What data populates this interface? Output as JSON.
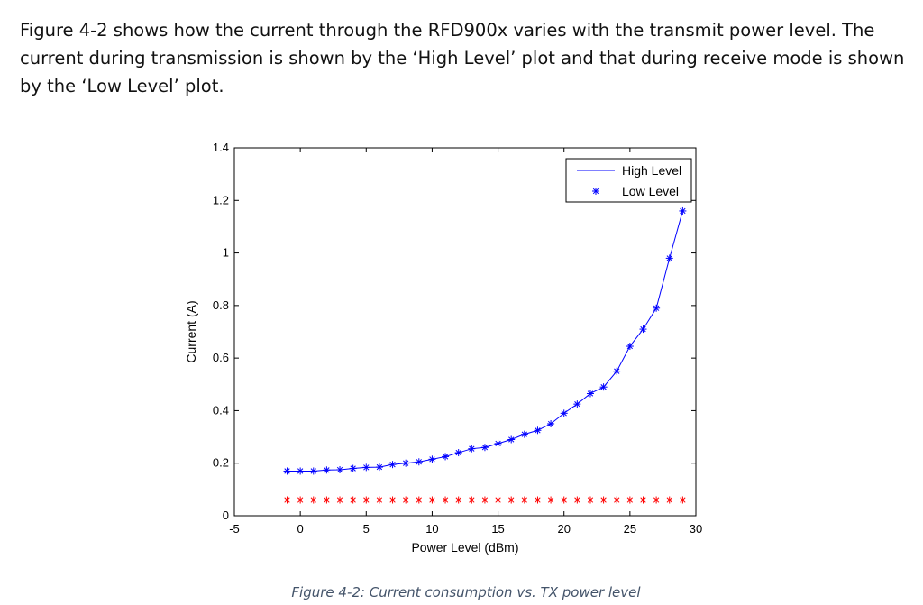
{
  "intro_text": "Figure 4-2 shows how the current through the RFD900x varies with the transmit power level. The current during transmission is shown by the ‘High Level’ plot and that during receive mode is shown by the ‘Low Level’ plot.",
  "caption": "Figure 4-2: Current consumption vs. TX power level",
  "chart_data": {
    "type": "line",
    "title": "",
    "xlabel": "Power Level (dBm)",
    "ylabel": "Current (A)",
    "xlim": [
      -5,
      30
    ],
    "ylim": [
      0,
      1.4
    ],
    "xticks": [
      -5,
      0,
      5,
      10,
      15,
      20,
      25,
      30
    ],
    "yticks": [
      0,
      0.2,
      0.4,
      0.6,
      0.8,
      1,
      1.2,
      1.4
    ],
    "ytick_labels": [
      "0",
      "0.2",
      "0.4",
      "0.6",
      "0.8",
      "1",
      "1.2",
      "1.4"
    ],
    "grid": false,
    "legend_position": "top-right",
    "series": [
      {
        "name": "High Level",
        "color": "#0000ff",
        "style": "line-with-star-markers",
        "x": [
          -1,
          0,
          1,
          2,
          3,
          4,
          5,
          6,
          7,
          8,
          9,
          10,
          11,
          12,
          13,
          14,
          15,
          16,
          17,
          18,
          19,
          20,
          21,
          22,
          23,
          24,
          25,
          26,
          27,
          28,
          29
        ],
        "y": [
          0.17,
          0.17,
          0.17,
          0.174,
          0.175,
          0.18,
          0.184,
          0.185,
          0.195,
          0.2,
          0.205,
          0.215,
          0.225,
          0.24,
          0.255,
          0.26,
          0.275,
          0.29,
          0.31,
          0.325,
          0.35,
          0.39,
          0.425,
          0.465,
          0.49,
          0.55,
          0.645,
          0.71,
          0.79,
          0.98,
          1.16
        ]
      },
      {
        "name": "Low Level",
        "color": "#ff0000",
        "style": "star-markers",
        "x": [
          -1,
          0,
          1,
          2,
          3,
          4,
          5,
          6,
          7,
          8,
          9,
          10,
          11,
          12,
          13,
          14,
          15,
          16,
          17,
          18,
          19,
          20,
          21,
          22,
          23,
          24,
          25,
          26,
          27,
          28,
          29
        ],
        "y": [
          0.06,
          0.06,
          0.06,
          0.06,
          0.06,
          0.06,
          0.06,
          0.06,
          0.06,
          0.06,
          0.06,
          0.06,
          0.06,
          0.06,
          0.06,
          0.06,
          0.06,
          0.06,
          0.06,
          0.06,
          0.06,
          0.06,
          0.06,
          0.06,
          0.06,
          0.06,
          0.06,
          0.06,
          0.06,
          0.06,
          0.06
        ]
      }
    ],
    "legend_marker_color": "#0000ff"
  }
}
